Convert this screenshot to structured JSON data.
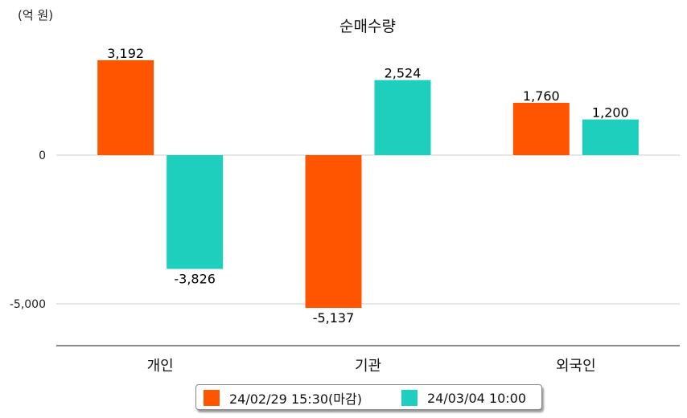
{
  "unit_label": "(억 원)",
  "chart_data": {
    "type": "bar",
    "title": "순매수량",
    "categories": [
      "개인",
      "기관",
      "외국인"
    ],
    "series": [
      {
        "name": "24/02/29 15:30(마감)",
        "color": "#FF5500",
        "values": [
          3192,
          -5137,
          1760
        ],
        "labels": [
          "3,192",
          "-5,137",
          "1,760"
        ]
      },
      {
        "name": "24/03/04 10:00",
        "color": "#1ECFBE",
        "values": [
          -3826,
          2524,
          1200
        ],
        "labels": [
          "-3,826",
          "2,524",
          "1,200"
        ]
      }
    ],
    "y_ticks": [
      0,
      -5000
    ],
    "y_tick_labels": [
      "0",
      "-5,000"
    ],
    "ylim": [
      -6500,
      4500
    ],
    "grid": true,
    "legend_position": "bottom"
  }
}
